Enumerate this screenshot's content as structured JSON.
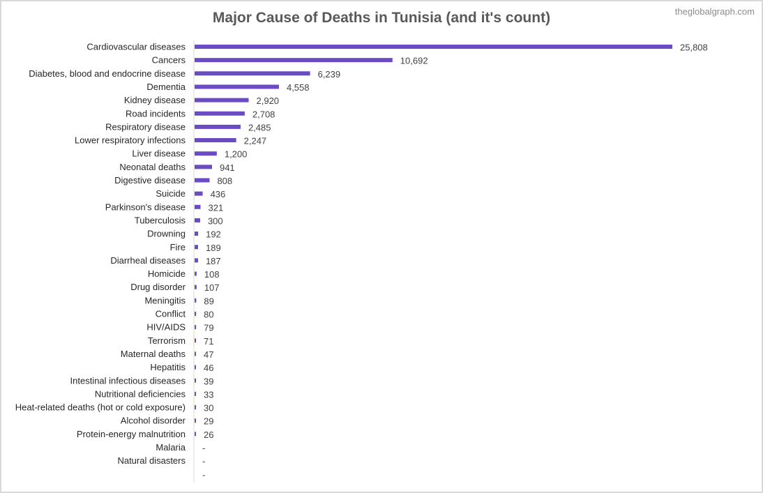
{
  "chart_data": {
    "type": "bar",
    "orientation": "horizontal",
    "title": "Major Cause of Deaths in Tunisia (and it's count)",
    "watermark": "theglobalgraph.com",
    "bar_color": "#6a4bc4",
    "categories": [
      "Cardiovascular diseases",
      "Cancers",
      "Diabetes, blood and endocrine disease",
      "Dementia",
      "Kidney disease",
      "Road incidents",
      "Respiratory disease",
      "Lower respiratory infections",
      "Liver disease",
      "Neonatal deaths",
      "Digestive disease",
      "Suicide",
      "Parkinson's disease",
      "Tuberculosis",
      "Drowning",
      "Fire",
      "Diarrheal diseases",
      "Homicide",
      "Drug disorder",
      "Meningitis",
      "Conflict",
      "HIV/AIDS",
      "Terrorism",
      "Maternal deaths",
      "Hepatitis",
      "Intestinal infectious diseases",
      "Nutritional deficiencies",
      "Heat-related deaths (hot or cold exposure)",
      "Alcohol disorder",
      "Protein-energy malnutrition",
      "Malaria",
      "Natural disasters",
      ""
    ],
    "values": [
      25808,
      10692,
      6239,
      4558,
      2920,
      2708,
      2485,
      2247,
      1200,
      941,
      808,
      436,
      321,
      300,
      192,
      189,
      187,
      108,
      107,
      89,
      80,
      79,
      71,
      47,
      46,
      39,
      33,
      30,
      29,
      26,
      null,
      null,
      null
    ],
    "value_labels": [
      "25,808",
      "10,692",
      "6,239",
      "4,558",
      "2,920",
      "2,708",
      "2,485",
      "2,247",
      "1,200",
      "941",
      "808",
      "436",
      "321",
      "300",
      "192",
      "189",
      "187",
      "108",
      "107",
      "89",
      "80",
      "79",
      "71",
      "47",
      "46",
      "39",
      "33",
      "30",
      "29",
      "26",
      "-",
      "-",
      "-"
    ]
  }
}
